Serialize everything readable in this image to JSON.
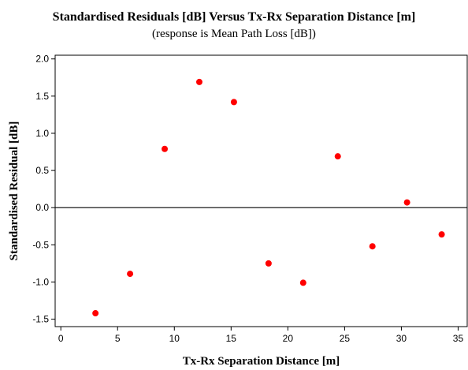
{
  "chart_data": {
    "type": "scatter",
    "title": "Standardised Residuals [dB] Versus Tx-Rx Separation Distance [m]",
    "subtitle": "(response is Mean Path Loss [dB])",
    "xlabel": "Tx-Rx Separation Distance [m]",
    "ylabel": "Standardised Residual [dB]",
    "xlim": [
      -0.5,
      35.8
    ],
    "ylim": [
      -1.6,
      2.05
    ],
    "xticks": [
      0,
      5,
      10,
      15,
      20,
      25,
      30,
      35
    ],
    "xtick_labels": [
      "0",
      "5",
      "10",
      "15",
      "20",
      "25",
      "30",
      "35"
    ],
    "yticks": [
      -1.5,
      -1.0,
      -0.5,
      0.0,
      0.5,
      1.0,
      1.5,
      2.0
    ],
    "ytick_labels": [
      "-1.5",
      "-1.0",
      "-0.5",
      "0.0",
      "0.5",
      "1.0",
      "1.5",
      "2.0"
    ],
    "reference_line_y": 0,
    "grid": false,
    "marker_color": "#ff0000",
    "x": [
      3.05,
      6.1,
      9.15,
      12.2,
      15.25,
      18.3,
      21.35,
      24.4,
      27.45,
      30.5,
      33.55
    ],
    "y": [
      -1.42,
      -0.89,
      0.79,
      1.69,
      1.42,
      -0.75,
      -1.01,
      0.69,
      -0.52,
      0.07,
      -0.36
    ]
  }
}
